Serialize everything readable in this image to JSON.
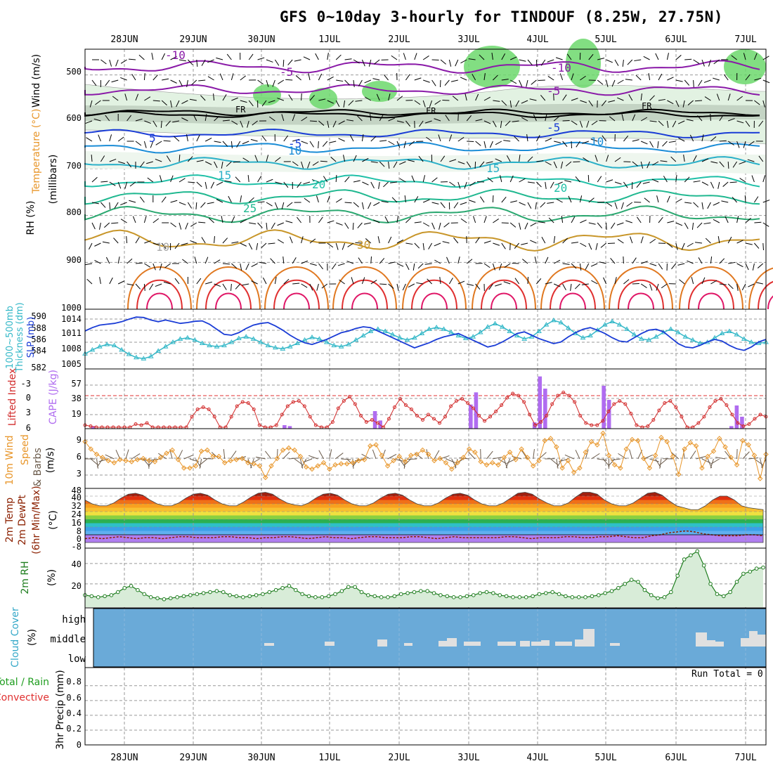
{
  "title": "GFS 0~10day 3-hourly for TINDOUF (8.25W, 27.75N)",
  "run_total": "Run Total = 0",
  "dates": [
    "28JUN",
    "29JUN",
    "30JUN",
    "1JUL",
    "2JUL",
    "3JUL",
    "4JUL",
    "5JUL",
    "6JUL",
    "7JUL"
  ],
  "colors": {
    "dewpt_line": "#8b2000",
    "rh_line": "#1e7d1e",
    "cape_bar": "#b06cf0",
    "lifted_index_line": "#d22b2b",
    "wind_speed_line": "#e8962a",
    "thickness_line": "#34b8c8",
    "slp_line": "#1a3cd6",
    "cloud_bg": "#6aaad8",
    "cloud_bar": "#e0e0e0"
  },
  "panels": {
    "upper_air": {
      "left_labels": [
        "Wind (m/s)",
        "Temperature (°C)",
        "RH (%)",
        "(millibars)"
      ],
      "ticks": [
        "500",
        "600",
        "700",
        "800",
        "900",
        "1000"
      ],
      "contour_labels": [
        "-10",
        "-5",
        "-5",
        "-10",
        "-5",
        "FR",
        "FR",
        "FR",
        "-5",
        "5",
        "10",
        "10",
        "15",
        "15",
        "20",
        "20",
        "25",
        "30",
        "30",
        "30",
        "30",
        "10"
      ]
    },
    "thickness_slp": {
      "left_labels": [
        "1000~500mb",
        "Thickness (dm)",
        "SLP (mb)"
      ],
      "thickness_ticks": [
        "590",
        "588",
        "586",
        "584",
        "582"
      ],
      "slp_ticks": [
        "1014",
        "1011",
        "1008",
        "1005"
      ]
    },
    "cape_li": {
      "left_labels": [
        "Lifted Index",
        "CAPE (J/kg)"
      ],
      "li_ticks": [
        "-3",
        "0",
        "3",
        "6"
      ],
      "cape_ticks": [
        "57",
        "38",
        "19"
      ]
    },
    "wind10m": {
      "left_labels": [
        "10m Wind",
        "Speed",
        "& Barbs",
        "(m/s)"
      ],
      "ticks": [
        "9",
        "6",
        "3"
      ]
    },
    "temp2m": {
      "left_labels": [
        "2m Temp",
        "2m DewPt",
        "(6hr Min/Max)",
        "(°C)"
      ],
      "ticks": [
        "48",
        "40",
        "32",
        "24",
        "16",
        "8",
        "0",
        "-8"
      ]
    },
    "rh2m": {
      "left_labels": [
        "2m RH",
        "(%)"
      ],
      "ticks": [
        "40",
        "20"
      ]
    },
    "cloud": {
      "left_labels": [
        "Cloud Cover",
        "(%)"
      ],
      "levels": [
        "high",
        "middle",
        "low"
      ]
    },
    "precip": {
      "left_labels": [
        "Total / Rain",
        "Convective",
        "3hr Precip (mm)"
      ],
      "ticks": [
        "0.8",
        "0.6",
        "0.4",
        "0.2",
        "0"
      ]
    }
  },
  "chart_data": [
    {
      "type": "line",
      "title": "1000~500mb Thickness (dm) / SLP (mb)",
      "x": "3-hourly steps from 27JUN 12Z",
      "series": [
        {
          "name": "Thickness (dm)",
          "values": [
            583.5,
            584.2,
            584.8,
            585.2,
            585.0,
            584.2,
            583.4,
            582.8,
            582.6,
            583.0,
            584.0,
            584.8,
            585.6,
            586.2,
            586.4,
            586.0,
            585.4,
            585.0,
            584.8,
            585.0,
            585.6,
            586.3,
            586.6,
            586.2,
            585.6,
            585.0,
            584.6,
            584.4,
            584.8,
            585.4,
            586.0,
            586.5,
            586.2,
            585.6,
            585.0,
            584.8,
            585.2,
            586.0,
            586.8,
            587.6,
            588.0,
            587.6,
            587.0,
            586.4,
            586.0,
            586.4,
            587.2,
            588.0,
            588.3,
            588.0,
            587.4,
            586.8,
            586.3,
            586.6,
            587.4,
            588.4,
            589.0,
            588.4,
            587.6,
            586.8,
            586.2,
            586.6,
            587.6,
            588.8,
            589.6,
            589.2,
            588.2,
            587.2,
            586.4,
            586.8,
            587.8,
            588.8,
            589.4,
            588.8,
            588.0,
            587.0,
            586.2,
            586.0,
            586.6,
            587.4,
            588.0,
            587.4,
            586.6,
            586.0,
            585.4,
            585.6,
            586.4,
            587.2,
            587.6,
            587.0,
            586.2,
            585.6,
            585.4,
            585.6
          ]
        },
        {
          "name": "SLP (mb)",
          "values": [
            1011.0,
            1011.8,
            1012.4,
            1012.6,
            1012.8,
            1013.2,
            1013.8,
            1014.3,
            1014.2,
            1013.6,
            1013.2,
            1013.6,
            1013.2,
            1012.8,
            1013.0,
            1013.3,
            1013.4,
            1012.6,
            1011.4,
            1010.2,
            1010.0,
            1010.6,
            1011.6,
            1012.4,
            1012.8,
            1013.0,
            1012.2,
            1011.2,
            1010.0,
            1009.0,
            1008.2,
            1007.8,
            1008.4,
            1009.0,
            1009.8,
            1010.6,
            1011.0,
            1011.6,
            1012.0,
            1011.8,
            1011.0,
            1010.2,
            1009.4,
            1008.6,
            1007.8,
            1007.0,
            1007.6,
            1008.2,
            1009.0,
            1009.6,
            1010.0,
            1010.4,
            1009.6,
            1008.8,
            1008.0,
            1007.2,
            1007.6,
            1008.4,
            1009.4,
            1010.4,
            1010.8,
            1010.0,
            1009.2,
            1008.6,
            1008.0,
            1008.4,
            1009.6,
            1010.6,
            1011.4,
            1011.8,
            1011.2,
            1010.4,
            1009.4,
            1008.6,
            1008.4,
            1009.4,
            1010.4,
            1011.2,
            1011.4,
            1010.8,
            1009.4,
            1008.0,
            1007.2,
            1007.0,
            1007.6,
            1008.4,
            1009.0,
            1008.6,
            1007.6,
            1006.8,
            1006.4,
            1007.2,
            1008.4,
            1009.0
          ]
        }
      ]
    },
    {
      "type": "bar",
      "title": "CAPE (J/kg) / Lifted Index",
      "series": [
        {
          "name": "CAPE (J/kg)",
          "values": [
            0,
            2,
            0,
            0,
            0,
            0,
            0,
            0,
            0,
            0,
            0,
            0,
            0,
            0,
            0,
            0,
            0,
            0,
            0,
            0,
            0,
            0,
            0,
            0,
            0,
            0,
            0,
            0,
            0,
            0,
            0,
            0,
            0,
            0,
            0,
            0,
            0,
            3,
            2,
            0,
            0,
            0,
            0,
            0,
            0,
            0,
            0,
            0,
            0,
            0,
            0,
            0,
            0,
            0,
            18,
            8,
            0,
            0,
            0,
            0,
            0,
            0,
            0,
            0,
            0,
            0,
            0,
            0,
            0,
            0,
            0,
            0,
            25,
            38,
            0,
            0,
            0,
            0,
            0,
            0,
            0,
            0,
            0,
            0,
            6,
            55,
            42,
            0,
            0,
            0,
            0,
            0,
            0,
            0,
            0,
            0,
            0,
            45,
            30,
            0,
            0,
            0,
            0,
            0,
            0,
            0,
            0,
            0,
            0,
            0,
            0,
            0,
            0,
            0,
            0,
            0,
            0,
            0,
            0,
            0,
            0,
            2,
            24,
            12,
            0,
            0,
            0,
            0
          ]
        },
        {
          "name": "Lifted Index",
          "values": [
            5.6,
            5.8,
            6.0,
            6.0,
            6.0,
            6.0,
            6.0,
            6.0,
            6.0,
            5.4,
            5.6,
            5.2,
            6.0,
            6.0,
            6.0,
            6.0,
            6.0,
            6.0,
            6.0,
            4.0,
            2.6,
            2.2,
            2.6,
            4.0,
            6.0,
            6.0,
            4.0,
            2.0,
            1.2,
            1.4,
            2.6,
            5.6,
            6.0,
            6.0,
            5.6,
            3.6,
            2.0,
            1.2,
            1.0,
            2.0,
            4.0,
            5.6,
            6.0,
            6.0,
            5.0,
            2.4,
            1.0,
            0.2,
            1.6,
            3.8,
            5.0,
            4.6,
            5.2,
            6.0,
            4.4,
            2.2,
            0.6,
            1.8,
            2.6,
            3.8,
            4.6,
            3.6,
            4.4,
            5.2,
            4.0,
            2.0,
            1.0,
            0.6,
            1.4,
            2.4,
            3.8,
            4.8,
            4.0,
            3.0,
            1.8,
            0.4,
            -0.4,
            0.0,
            1.2,
            3.6,
            5.6,
            5.0,
            3.8,
            1.6,
            0.0,
            -0.6,
            0.0,
            1.2,
            3.8,
            5.2,
            5.6,
            5.6,
            4.8,
            3.0,
            1.6,
            1.0,
            1.6,
            3.4,
            5.6,
            6.0,
            5.8,
            4.6,
            2.8,
            1.4,
            1.0,
            2.2,
            4.0,
            6.0,
            6.0,
            5.2,
            4.0,
            2.2,
            1.0,
            0.6,
            1.8,
            3.6,
            5.2,
            5.8,
            5.4,
            4.4,
            3.6,
            4.0
          ]
        }
      ]
    },
    {
      "type": "line",
      "title": "10m Wind Speed (m/s)",
      "series": [
        {
          "name": "10m Wind Speed",
          "values": [
            8.2,
            6.8,
            5.8,
            5.2,
            4.6,
            4.2,
            4.8,
            4.6,
            4.4,
            4.8,
            5.0,
            4.6,
            4.4,
            5.2,
            6.0,
            6.6,
            4.8,
            3.2,
            3.2,
            3.6,
            6.4,
            6.6,
            5.4,
            5.4,
            4.2,
            4.6,
            4.8,
            5.0,
            4.2,
            4.0,
            3.6,
            1.4,
            3.6,
            5.0,
            6.6,
            7.0,
            6.6,
            5.4,
            3.4,
            3.0,
            3.6,
            4.2,
            3.0,
            3.8,
            4.0,
            4.0,
            4.2,
            4.6,
            4.8,
            7.4,
            7.6,
            5.6,
            3.6,
            4.6,
            5.4,
            4.4,
            5.6,
            5.8,
            6.6,
            5.8,
            4.6,
            5.0,
            4.2,
            3.0,
            4.2,
            5.2,
            6.8,
            6.2,
            4.4,
            3.8,
            4.2,
            3.8,
            5.2,
            6.2,
            4.8,
            6.8,
            5.2,
            3.6,
            4.6,
            8.4,
            8.8,
            7.2,
            3.2,
            4.6,
            2.4,
            3.2,
            6.2,
            8.2,
            7.6,
            9.8,
            5.6,
            3.8,
            3.2,
            6.8,
            8.6,
            8.4,
            5.0,
            3.2,
            5.6,
            9.0,
            8.2,
            5.4,
            2.0,
            6.8,
            8.0,
            7.4,
            3.2,
            5.4,
            6.4,
            8.8,
            7.2,
            5.2,
            3.8,
            8.4,
            7.6,
            5.6,
            1.2,
            5.8
          ]
        }
      ]
    },
    {
      "type": "area",
      "title": "2m Temp / 2m DewPt (°C)",
      "series": [
        {
          "name": "2m Temp",
          "values": [
            36,
            32,
            30,
            30,
            33,
            38,
            42,
            43,
            41,
            36,
            32,
            30,
            30,
            33,
            38,
            42,
            43,
            41,
            36,
            32,
            30,
            30,
            34,
            39,
            43,
            44,
            42,
            37,
            33,
            31,
            30,
            33,
            38,
            42,
            43,
            41,
            36,
            32,
            30,
            30,
            33,
            38,
            42,
            43,
            41,
            36,
            32,
            30,
            30,
            33,
            38,
            42,
            43,
            41,
            36,
            32,
            30,
            30,
            33,
            38,
            43,
            44,
            42,
            37,
            33,
            30,
            30,
            33,
            39,
            44,
            44,
            42,
            36,
            32,
            30,
            30,
            33,
            38,
            43,
            44,
            41,
            35,
            30,
            28,
            26,
            26,
            30,
            36,
            40,
            40,
            36,
            30,
            28,
            27,
            26
          ]
        },
        {
          "name": "2m DewPt",
          "values": [
            -4,
            -3,
            -4,
            -3,
            -2,
            -3,
            -4,
            -3,
            -3,
            -4,
            -3,
            -2,
            -2,
            -3,
            -3,
            -3,
            -2,
            -2,
            -3,
            -3,
            -4,
            -3,
            -3,
            -2,
            -2,
            -3,
            -4,
            -3,
            -2,
            -3,
            -3,
            -4,
            -3,
            -2,
            -2,
            -3,
            -3,
            -3,
            -2,
            -2,
            -3,
            -4,
            -3,
            -2,
            -3,
            -3,
            -3,
            -3,
            -3,
            -2,
            -2,
            -3,
            -4,
            -3,
            -3,
            -3,
            -2,
            -2,
            -3,
            -3,
            -2,
            -2,
            -1,
            -2,
            -3,
            -3,
            -1,
            0,
            2,
            3,
            4,
            3,
            1,
            0,
            -1,
            -1,
            -1,
            0,
            0,
            -1
          ]
        }
      ]
    },
    {
      "type": "area",
      "title": "2m RH (%)",
      "series": [
        {
          "name": "2m RH",
          "values": [
            9,
            8,
            7,
            8,
            9,
            12,
            16,
            18,
            14,
            10,
            7,
            6,
            5,
            6,
            7,
            8,
            9,
            10,
            11,
            12,
            13,
            12,
            9,
            8,
            7,
            8,
            9,
            10,
            12,
            14,
            16,
            18,
            14,
            10,
            8,
            7,
            7,
            8,
            10,
            13,
            17,
            17,
            12,
            9,
            8,
            7,
            7,
            8,
            10,
            11,
            12,
            13,
            13,
            11,
            9,
            8,
            7,
            7,
            8,
            9,
            11,
            12,
            11,
            9,
            8,
            7,
            7,
            7,
            8,
            10,
            11,
            12,
            10,
            8,
            7,
            7,
            7,
            8,
            9,
            11,
            13,
            16,
            20,
            24,
            22,
            14,
            9,
            6,
            7,
            12,
            28,
            44,
            48,
            52,
            38,
            20,
            10,
            8,
            12,
            22,
            30,
            32,
            35,
            36
          ]
        }
      ]
    }
  ]
}
